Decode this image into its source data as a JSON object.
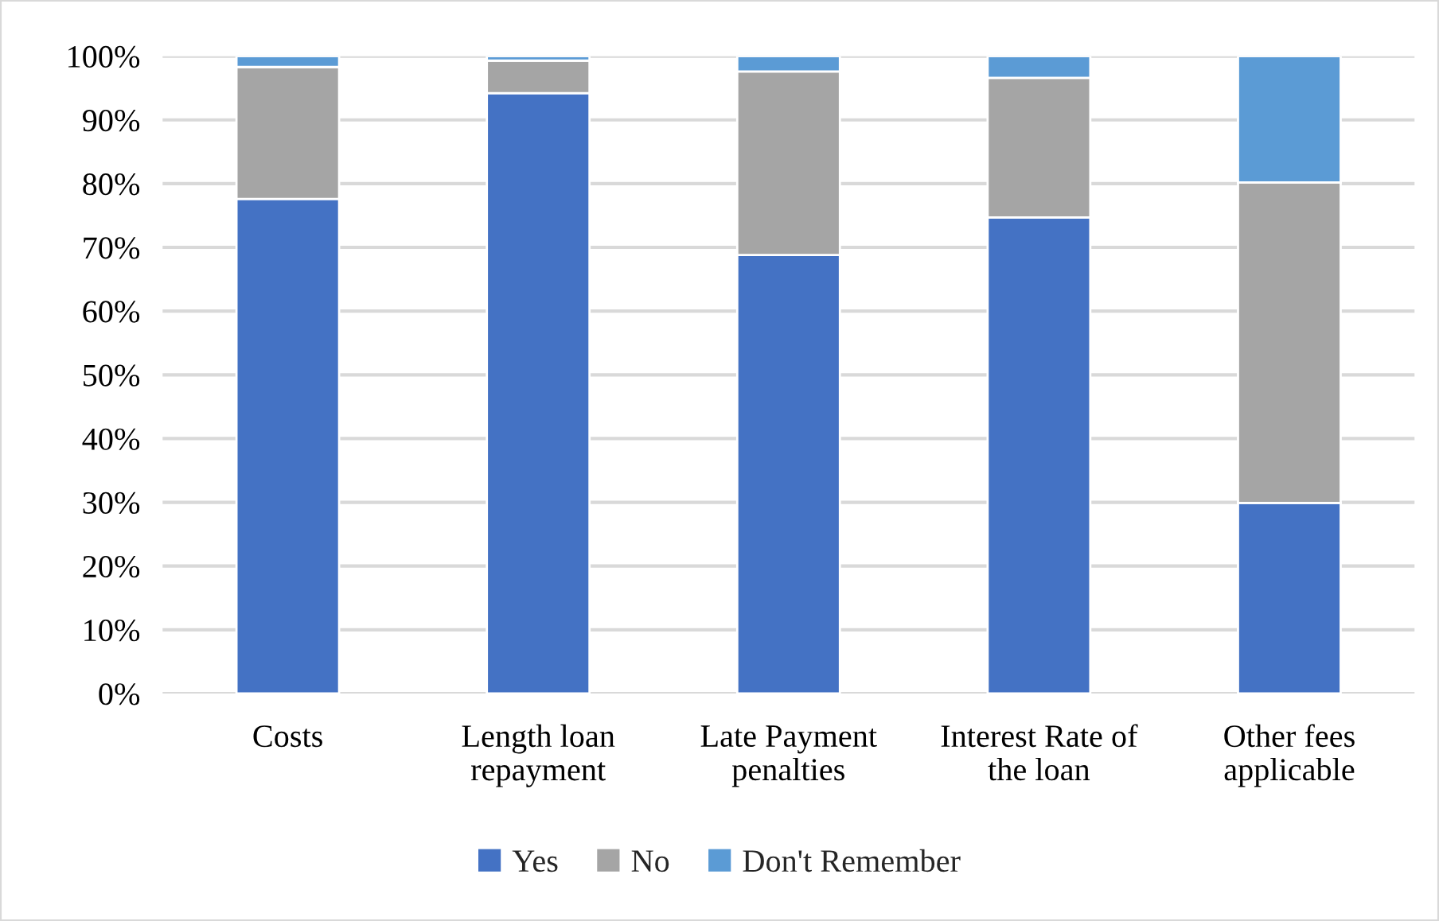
{
  "chart_data": {
    "type": "bar",
    "stacked": true,
    "categories": [
      "Costs",
      "Length loan repayment",
      "Late Payment penalties",
      "Interest Rate of the loan",
      "Other fees applicable"
    ],
    "series": [
      {
        "name": "Yes",
        "color": "#4472c4",
        "values": [
          77.6,
          94.2,
          68.8,
          74.7,
          29.9
        ]
      },
      {
        "name": "No",
        "color": "#a5a5a5",
        "values": [
          20.7,
          5.1,
          28.8,
          21.9,
          50.3
        ]
      },
      {
        "name": "Don't Remember",
        "color": "#5b9bd5",
        "values": [
          1.7,
          0.7,
          2.4,
          3.4,
          19.8
        ]
      }
    ],
    "ylim": [
      0,
      100
    ],
    "yticks": [
      {
        "value": 0,
        "label": "0%"
      },
      {
        "value": 10,
        "label": "10%"
      },
      {
        "value": 20,
        "label": "20%"
      },
      {
        "value": 30,
        "label": "30%"
      },
      {
        "value": 40,
        "label": "40%"
      },
      {
        "value": 50,
        "label": "50%"
      },
      {
        "value": 60,
        "label": "60%"
      },
      {
        "value": 70,
        "label": "70%"
      },
      {
        "value": 80,
        "label": "80%"
      },
      {
        "value": 90,
        "label": "90%"
      },
      {
        "value": 100,
        "label": "100%"
      }
    ],
    "grid": "y",
    "legend": "bottom"
  }
}
